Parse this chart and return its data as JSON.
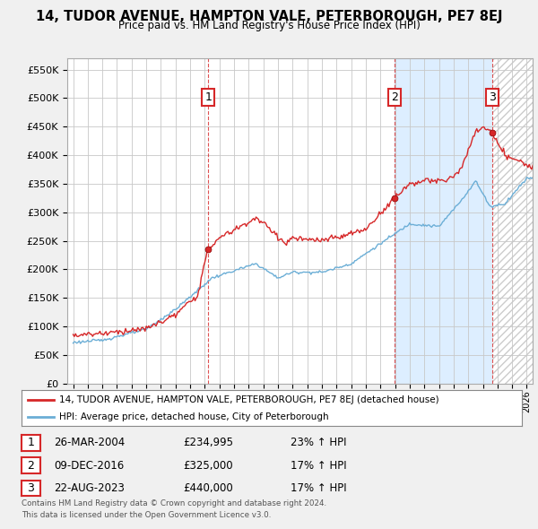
{
  "title": "14, TUDOR AVENUE, HAMPTON VALE, PETERBOROUGH, PE7 8EJ",
  "subtitle": "Price paid vs. HM Land Registry's House Price Index (HPI)",
  "ylim": [
    0,
    570000
  ],
  "yticks": [
    0,
    50000,
    100000,
    150000,
    200000,
    250000,
    300000,
    350000,
    400000,
    450000,
    500000,
    550000
  ],
  "ytick_labels": [
    "£0",
    "£50K",
    "£100K",
    "£150K",
    "£200K",
    "£250K",
    "£300K",
    "£350K",
    "£400K",
    "£450K",
    "£500K",
    "£550K"
  ],
  "sale_dates_num": [
    2004.23,
    2016.94,
    2023.64
  ],
  "sale_prices": [
    234995,
    325000,
    440000
  ],
  "sale_labels": [
    "1",
    "2",
    "3"
  ],
  "legend_line1": "14, TUDOR AVENUE, HAMPTON VALE, PETERBOROUGH, PE7 8EJ (detached house)",
  "legend_line2": "HPI: Average price, detached house, City of Peterborough",
  "table_rows": [
    [
      "1",
      "26-MAR-2004",
      "£234,995",
      "23% ↑ HPI"
    ],
    [
      "2",
      "09-DEC-2016",
      "£325,000",
      "17% ↑ HPI"
    ],
    [
      "3",
      "22-AUG-2023",
      "£440,000",
      "17% ↑ HPI"
    ]
  ],
  "footnote1": "Contains HM Land Registry data © Crown copyright and database right 2024.",
  "footnote2": "This data is licensed under the Open Government Licence v3.0.",
  "hpi_color": "#6baed6",
  "price_color": "#d62728",
  "background_color": "#f0f0f0",
  "plot_bg_color": "#ffffff",
  "grid_color": "#c8c8c8",
  "shade_color": "#ddeeff",
  "hatch_color": "#cccccc",
  "xlim_start": 1994.6,
  "xlim_end": 2026.4
}
